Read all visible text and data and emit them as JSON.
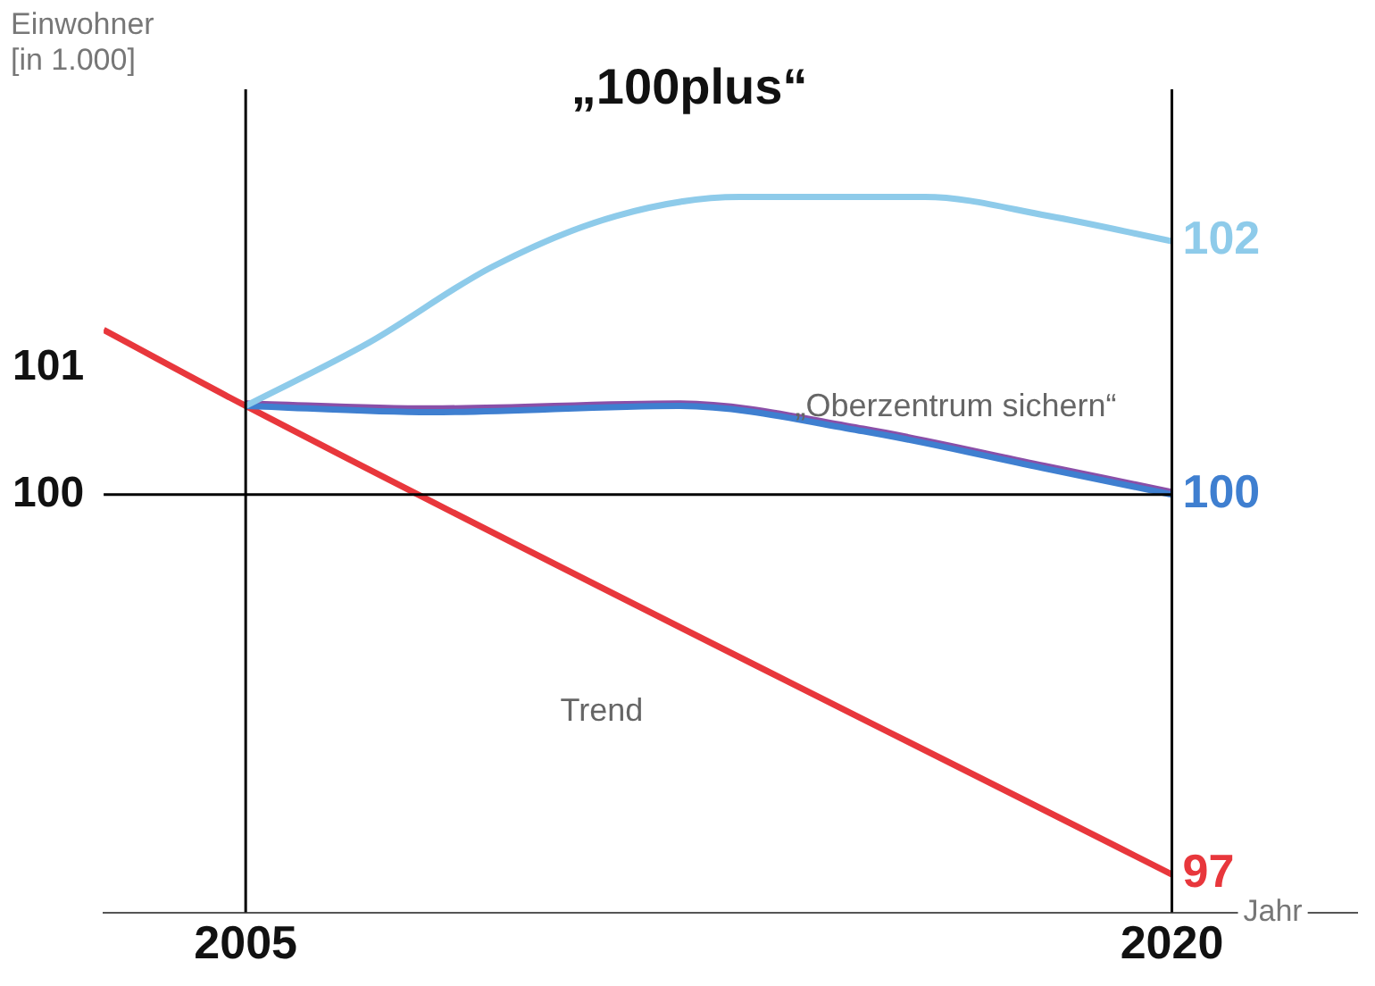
{
  "chart_data": {
    "type": "line",
    "xlabel": "Jahr",
    "ylabel": "Einwohner [in 1.000]",
    "xlim": [
      2002.7,
      2023
    ],
    "xticks": [
      2005,
      2020
    ],
    "ylim": [
      96.7,
      103.2
    ],
    "yticks": [
      100,
      101
    ],
    "grid": false,
    "legend": false,
    "marker": "none",
    "line_style": "solid",
    "ref_lines": [
      {
        "axis": "x",
        "value": 2005,
        "color": "#000000"
      },
      {
        "axis": "x",
        "value": 2020,
        "color": "#000000"
      },
      {
        "axis": "y",
        "value": 100,
        "color": "#000000"
      }
    ],
    "series": [
      {
        "name": "„100plus“",
        "color": "#8ecbea",
        "x": [
          2005,
          2007,
          2009,
          2011,
          2013,
          2016,
          2018,
          2020
        ],
        "values": [
          100.7,
          101.2,
          101.8,
          102.2,
          102.35,
          102.35,
          102.2,
          102
        ],
        "value_labels": [
          null,
          null,
          null,
          null,
          null,
          null,
          null,
          "102"
        ]
      },
      {
        "name": "„Oberzentrum sichern“",
        "color": "#3f7fd0",
        "x": [
          2005,
          2008,
          2012,
          2015,
          2018,
          2020
        ],
        "values": [
          100.7,
          100.65,
          100.7,
          100.5,
          100.2,
          100
        ],
        "value_labels": [
          null,
          null,
          null,
          null,
          null,
          "100"
        ]
      },
      {
        "color": "#8a4fa8",
        "x": [
          2005,
          2008,
          2012,
          2015,
          2018,
          2020
        ],
        "values": [
          100.72,
          100.68,
          100.72,
          100.52,
          100.22,
          100.02
        ]
      },
      {
        "name": "Trend",
        "color": "#e8373c",
        "x": [
          2002.7,
          2005,
          2020
        ],
        "values": [
          101.3,
          100.7,
          97
        ],
        "value_labels": [
          null,
          null,
          "97"
        ]
      }
    ]
  }
}
